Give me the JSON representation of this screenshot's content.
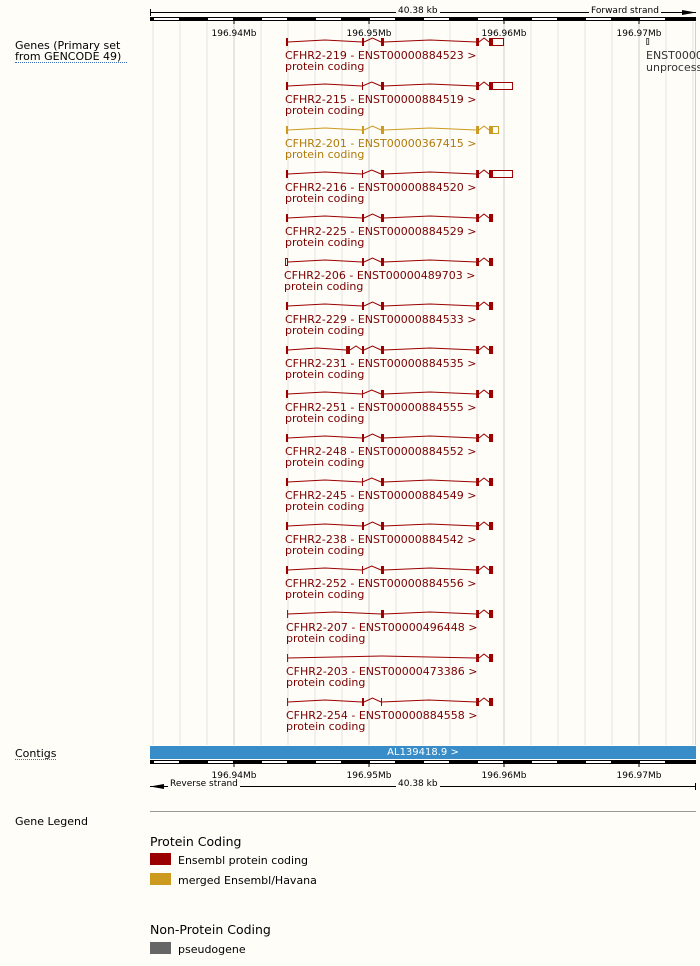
{
  "scale": {
    "length_label": "40.38 kb",
    "forward_strand": "Forward strand",
    "reverse_strand": "Reverse strand",
    "start_mb": 196.9313,
    "end_mb": 196.9717,
    "ticks": [
      "196.94Mb",
      "196.95Mb",
      "196.96Mb",
      "196.97Mb"
    ],
    "tick_values": [
      196.94,
      196.95,
      196.96,
      196.97
    ]
  },
  "tracks": {
    "genes_label": "Genes (Primary set from GENCODE 49)",
    "contigs_label": "Contigs",
    "contig_name": "AL139418.9 >",
    "gene_legend_label": "Gene Legend"
  },
  "colors": {
    "ensembl_protein_coding": "#9b0000",
    "merged": "#cc9a1f",
    "pseudogene": "#666666",
    "contig": "#388dc8"
  },
  "side_gene": {
    "name": "ENST0000",
    "biotype": "unprocess",
    "start": 196.97053,
    "end": 196.97068
  },
  "transcripts": [
    {
      "name": "CFHR2-219 - ENST00000884523 >",
      "biotype": "protein coding",
      "color": "ensembl_protein_coding",
      "exons": [
        [
          196.94385,
          196.944,
          "c"
        ],
        [
          196.94948,
          196.94963,
          "c"
        ],
        [
          196.95089,
          196.95111,
          "c"
        ],
        [
          196.95793,
          196.95815,
          "c"
        ],
        [
          196.95889,
          196.95911,
          "c"
        ],
        [
          196.95911,
          196.96,
          "u"
        ]
      ]
    },
    {
      "name": "CFHR2-215 - ENST00000884519 >",
      "biotype": "protein coding",
      "color": "ensembl_protein_coding",
      "exons": [
        [
          196.94385,
          196.944,
          "c"
        ],
        [
          196.94948,
          196.94952,
          "c"
        ],
        [
          196.95089,
          196.95111,
          "c"
        ],
        [
          196.95793,
          196.95815,
          "c"
        ],
        [
          196.95889,
          196.95911,
          "c"
        ],
        [
          196.95911,
          196.96067,
          "u"
        ]
      ]
    },
    {
      "name": "CFHR2-201 - ENST00000367415 >",
      "biotype": "protein coding",
      "color": "merged",
      "exons": [
        [
          196.94385,
          196.944,
          "c"
        ],
        [
          196.94948,
          196.94963,
          "c"
        ],
        [
          196.95089,
          196.95111,
          "c"
        ],
        [
          196.95793,
          196.95815,
          "c"
        ],
        [
          196.95889,
          196.95911,
          "c"
        ],
        [
          196.95911,
          196.95963,
          "u"
        ]
      ]
    },
    {
      "name": "CFHR2-216 - ENST00000884520 >",
      "biotype": "protein coding",
      "color": "ensembl_protein_coding",
      "exons": [
        [
          196.94385,
          196.944,
          "c"
        ],
        [
          196.94948,
          196.94952,
          "c"
        ],
        [
          196.95089,
          196.95111,
          "c"
        ],
        [
          196.95793,
          196.95815,
          "c"
        ],
        [
          196.95889,
          196.95911,
          "c"
        ],
        [
          196.95911,
          196.96067,
          "u"
        ]
      ]
    },
    {
      "name": "CFHR2-225 - ENST00000884529 >",
      "biotype": "protein coding",
      "color": "ensembl_protein_coding",
      "exons": [
        [
          196.94385,
          196.944,
          "c"
        ],
        [
          196.94948,
          196.94963,
          "c"
        ],
        [
          196.95089,
          196.95111,
          "c"
        ],
        [
          196.95793,
          196.95815,
          "c"
        ],
        [
          196.95889,
          196.95919,
          "c"
        ]
      ]
    },
    {
      "name": "CFHR2-206 - ENST00000489703 >",
      "biotype": "protein coding",
      "color": "ensembl_protein_coding",
      "exons": [
        [
          196.94378,
          196.944,
          "u"
        ],
        [
          196.94948,
          196.94963,
          "c"
        ],
        [
          196.95089,
          196.95111,
          "c"
        ],
        [
          196.95793,
          196.95815,
          "c"
        ],
        [
          196.95889,
          196.95919,
          "c"
        ]
      ]
    },
    {
      "name": "CFHR2-229 - ENST00000884533 >",
      "biotype": "protein coding",
      "color": "ensembl_protein_coding",
      "exons": [
        [
          196.94385,
          196.944,
          "c"
        ],
        [
          196.94948,
          196.94963,
          "c"
        ],
        [
          196.95089,
          196.95111,
          "c"
        ],
        [
          196.95793,
          196.95815,
          "c"
        ],
        [
          196.95889,
          196.95919,
          "c"
        ]
      ]
    },
    {
      "name": "CFHR2-231 - ENST00000884535 >",
      "biotype": "protein coding",
      "color": "ensembl_protein_coding",
      "exons": [
        [
          196.94385,
          196.944,
          "c"
        ],
        [
          196.9483,
          196.94859,
          "c"
        ],
        [
          196.94948,
          196.94963,
          "c"
        ],
        [
          196.95089,
          196.95111,
          "c"
        ],
        [
          196.95793,
          196.95815,
          "c"
        ],
        [
          196.95889,
          196.95919,
          "c"
        ]
      ]
    },
    {
      "name": "CFHR2-251 - ENST00000884555 >",
      "biotype": "protein coding",
      "color": "ensembl_protein_coding",
      "exons": [
        [
          196.94385,
          196.944,
          "c"
        ],
        [
          196.94948,
          196.94952,
          "c"
        ],
        [
          196.95089,
          196.95111,
          "c"
        ],
        [
          196.95793,
          196.95815,
          "c"
        ],
        [
          196.95889,
          196.95919,
          "c"
        ]
      ]
    },
    {
      "name": "CFHR2-248 - ENST00000884552 >",
      "biotype": "protein coding",
      "color": "ensembl_protein_coding",
      "exons": [
        [
          196.94385,
          196.944,
          "c"
        ],
        [
          196.94948,
          196.94963,
          "c"
        ],
        [
          196.95089,
          196.95111,
          "c"
        ],
        [
          196.95793,
          196.95815,
          "c"
        ],
        [
          196.95889,
          196.95919,
          "c"
        ]
      ]
    },
    {
      "name": "CFHR2-245 - ENST00000884549 >",
      "biotype": "protein coding",
      "color": "ensembl_protein_coding",
      "exons": [
        [
          196.94385,
          196.944,
          "c"
        ],
        [
          196.94948,
          196.94952,
          "c"
        ],
        [
          196.95089,
          196.95111,
          "c"
        ],
        [
          196.95793,
          196.95815,
          "c"
        ],
        [
          196.95889,
          196.95919,
          "c"
        ]
      ]
    },
    {
      "name": "CFHR2-238 - ENST00000884542 >",
      "biotype": "protein coding",
      "color": "ensembl_protein_coding",
      "exons": [
        [
          196.94385,
          196.944,
          "c"
        ],
        [
          196.94948,
          196.94963,
          "c"
        ],
        [
          196.95089,
          196.95111,
          "c"
        ],
        [
          196.95793,
          196.95815,
          "c"
        ],
        [
          196.95889,
          196.95919,
          "c"
        ]
      ]
    },
    {
      "name": "CFHR2-252 - ENST00000884556 >",
      "biotype": "protein coding",
      "color": "ensembl_protein_coding",
      "exons": [
        [
          196.94385,
          196.944,
          "c"
        ],
        [
          196.94948,
          196.94952,
          "c"
        ],
        [
          196.95089,
          196.95111,
          "c"
        ],
        [
          196.95793,
          196.95815,
          "c"
        ],
        [
          196.95889,
          196.95919,
          "c"
        ]
      ]
    },
    {
      "name": "CFHR2-207 - ENST00000496448 >",
      "biotype": "protein coding",
      "color": "ensembl_protein_coding",
      "exons": [
        [
          196.94393,
          196.944,
          "c"
        ],
        [
          196.95089,
          196.95111,
          "c"
        ],
        [
          196.95793,
          196.95815,
          "c"
        ],
        [
          196.95889,
          196.95919,
          "c"
        ]
      ]
    },
    {
      "name": "CFHR2-203 - ENST00000473386 >",
      "biotype": "protein coding",
      "color": "ensembl_protein_coding",
      "exons": [
        [
          196.94393,
          196.944,
          "c"
        ],
        [
          196.95793,
          196.95815,
          "c"
        ],
        [
          196.95889,
          196.95919,
          "c"
        ]
      ]
    },
    {
      "name": "CFHR2-254 - ENST00000884558 >",
      "biotype": "protein coding",
      "color": "ensembl_protein_coding",
      "exons": [
        [
          196.94393,
          196.944,
          "c"
        ],
        [
          196.94948,
          196.94963,
          "c"
        ],
        [
          196.95089,
          196.95093,
          "c"
        ],
        [
          196.95793,
          196.95815,
          "c"
        ],
        [
          196.95889,
          196.95919,
          "c"
        ]
      ]
    }
  ],
  "legend": {
    "protein_coding_heading": "Protein Coding",
    "items_protein": [
      {
        "label": "Ensembl protein coding",
        "color": "#9b0000"
      },
      {
        "label": "merged Ensembl/Havana",
        "color": "#cc9a1f"
      }
    ],
    "non_protein_heading": "Non-Protein Coding",
    "items_non_protein": [
      {
        "label": "pseudogene",
        "color": "#666666"
      }
    ]
  }
}
